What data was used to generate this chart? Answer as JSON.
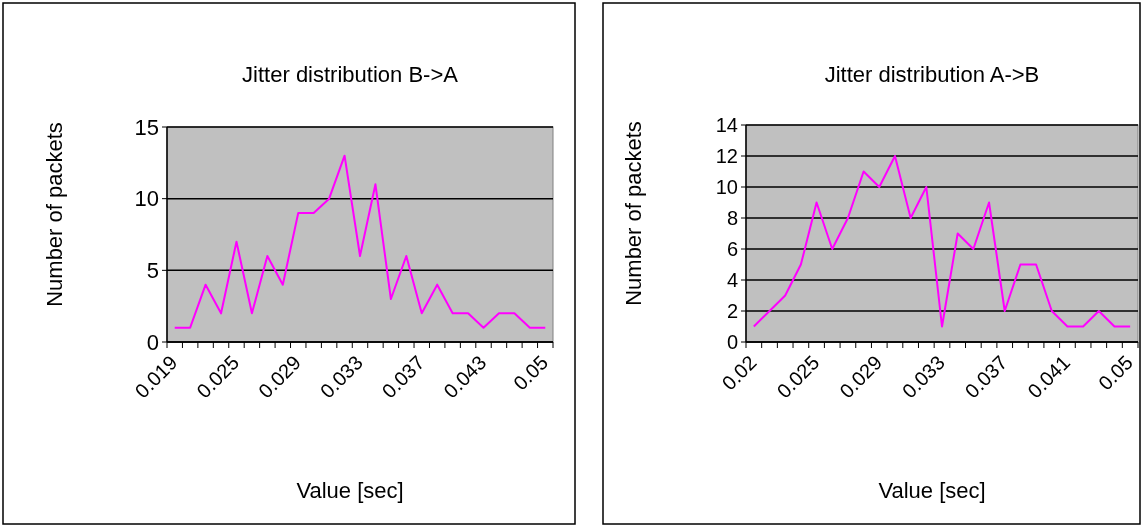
{
  "chart_data": [
    {
      "type": "line",
      "title": "Jitter distribution B->A",
      "xlabel": "Value [sec]",
      "ylabel": "Number of packets",
      "categories": [
        "0.019",
        null,
        null,
        null,
        "0.025",
        null,
        null,
        null,
        "0.029",
        null,
        null,
        null,
        "0.033",
        null,
        null,
        null,
        "0.037",
        null,
        null,
        null,
        "0.043",
        null,
        null,
        null,
        "0.05"
      ],
      "series": [
        {
          "color": "#ff00ff",
          "values": [
            1,
            1,
            4,
            2,
            7,
            2,
            6,
            4,
            9,
            9,
            10,
            13,
            6,
            11,
            3,
            6,
            2,
            4,
            2,
            2,
            1,
            2,
            2,
            1,
            1
          ]
        }
      ],
      "ylim": [
        0,
        15
      ],
      "yticks": [
        0,
        5,
        10,
        15
      ],
      "grid": "y",
      "marker": "none"
    },
    {
      "type": "line",
      "title": "Jitter distribution A->B",
      "xlabel": "Value [sec]",
      "ylabel": "Number of packets",
      "categories": [
        "0.02",
        null,
        null,
        null,
        "0.025",
        null,
        null,
        null,
        "0.029",
        null,
        null,
        null,
        "0.033",
        null,
        null,
        null,
        "0.037",
        null,
        null,
        null,
        "0.041",
        null,
        null,
        null,
        "0.05"
      ],
      "series": [
        {
          "color": "#ff00ff",
          "values": [
            1,
            2,
            3,
            5,
            9,
            6,
            8,
            11,
            10,
            12,
            8,
            10,
            1,
            7,
            6,
            9,
            2,
            5,
            5,
            2,
            1,
            1,
            2,
            1,
            1
          ]
        }
      ],
      "ylim": [
        0,
        14
      ],
      "yticks": [
        0,
        2,
        4,
        6,
        8,
        10,
        12,
        14
      ],
      "grid": "y",
      "marker": "none"
    }
  ]
}
